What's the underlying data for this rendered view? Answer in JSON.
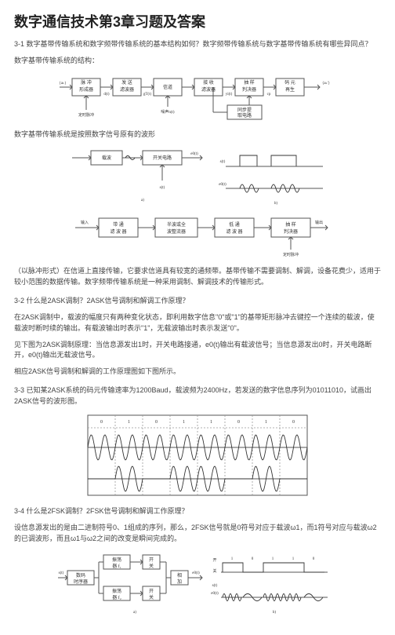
{
  "title": "数字通信技术第3章习题及答案",
  "q31": "3-1 数字基带传输系统和数字频带传输系统的基本结构如何？数字频带传输系统与数字基带传输系统有哪些异同点？",
  "a31_1": "数字基带传输系统的结构：",
  "a31_2": "数字基带传输系统是按照数字信号原有的波形",
  "a31_3": "（以脉冲形式）在信道上直接传输，它要求信道具有较宽的通频带。基带传输不需要调制、解调，设备花费少，适用于较小范围的数据传输。数字频带传输系统是一种采用调制、解调技术的传输形式。",
  "q32": "3-2 什么是2ASK调制？2ASK信号调制和解调工作原理？",
  "a32_1": "在2ASK调制中，载波的幅度只有两种变化状态，即利用数字信息\"0\"或\"1\"的基带矩形脉冲去键控一个连续的载波，使载波时断时续的输出。有载波输出时表示\"1\"，无载波输出时表示发送\"0\"。",
  "a32_2": "见下图为2ASK调制原理：当信息源发出1时，开关电路接通，e0(t)输出有载波信号；当信息源发出0时，开关电路断开，e0(t)输出无载波信号。",
  "a32_3": "相应2ASK信号调制和解调的工作原理图如下图所示。",
  "q33": "3-3 已知某2ASK系统的码元传输速率为1200Baud，载波频为2400Hz，若发送的数字信息序列为01011010，试画出2ASK信号的波形图。",
  "q34": "3-4 什么是2FSK调制？2FSK信号调制和解调工作原理？",
  "a34_1": "设信息源发出的是由二进制符号0、1组成的序列，那么，2FSK信号就是0符号对应于载波ω1，而1符号对应与载波ω2的已调波形，而且ω1与ω2之间的改变是瞬间完成的。",
  "fig1": {
    "boxes": [
      "脉冲\n形成器",
      "发送\n滤波器",
      "信道",
      "接收\n滤波器",
      "抽样\n判决器",
      "码元\n再生"
    ],
    "outs": [
      "d(t)",
      "gT(t)",
      "噪声n(t)",
      "yi(t)",
      "cp"
    ],
    "bottom": [
      "定时脉冲",
      "同步提\n取电路"
    ]
  },
  "fig2a": {
    "labels": [
      "载波",
      "开关电路",
      "s(t)",
      "e0(t)",
      "a)"
    ]
  },
  "fig2b": {
    "labels": [
      "s(t)",
      "e0(t)",
      "b)"
    ]
  },
  "fig3": {
    "boxes": [
      "带通\n滤波器",
      "半波或全\n波整流器",
      "低通\n滤波器",
      "抽 样\n判决器"
    ],
    "io": [
      "输入",
      "输出",
      "定时脉冲"
    ]
  },
  "bits": [
    "0",
    "1",
    "0",
    "1",
    "1",
    "0",
    "1",
    "0"
  ],
  "fig5a": {
    "blocks": [
      "振荡\n器 f₁",
      "振荡\n器 f₂",
      "数码\n时序器",
      "开\n关",
      "开\n关",
      "相\n加"
    ],
    "io": [
      "s(t)",
      "e0(t)",
      "e0(t)",
      "a)"
    ]
  },
  "fig5b": {
    "labels": [
      "开",
      "关",
      "s(t)",
      "e0(t)",
      "b)"
    ],
    "bits": [
      "1",
      "0",
      "1",
      "1",
      "0"
    ]
  },
  "sine": {
    "amp": 14,
    "mid": 0,
    "per": 14
  },
  "colors": {
    "line": "#555",
    "sig": "#333",
    "grid": "#ccc"
  }
}
